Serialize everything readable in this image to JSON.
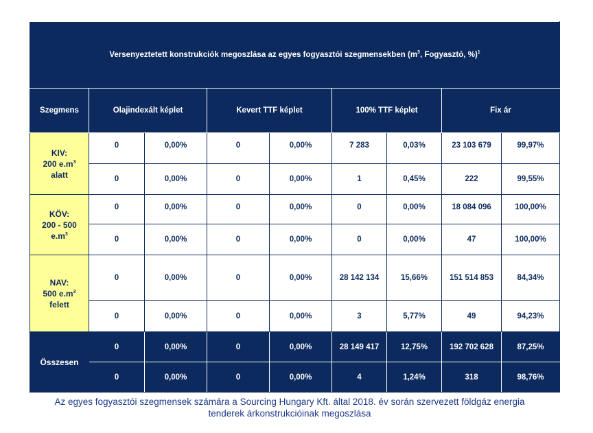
{
  "table": {
    "title": "Versenyeztetett konstrukciók megoszlása az egyes fogyasztói szegmensekben (m³, Fogyasztó, %)¹",
    "headers": [
      "Szegmens",
      "Olajindexált képlet",
      "Kevert TTF képlet",
      "100% TTF képlet",
      "Fix ár"
    ],
    "segments": [
      {
        "label_lines": [
          "KIV:",
          "200 e.m³",
          "alatt"
        ],
        "rows": [
          [
            "0",
            "0,00%",
            "0",
            "0,00%",
            "7 283",
            "0,03%",
            "23 103 679",
            "99,97%"
          ],
          [
            "0",
            "0,00%",
            "0",
            "0,00%",
            "1",
            "0,45%",
            "222",
            "99,55%"
          ]
        ]
      },
      {
        "label_lines": [
          "KÖV:",
          "200 - 500",
          "e.m³"
        ],
        "rows": [
          [
            "0",
            "0,00%",
            "0",
            "0,00%",
            "0",
            "0,00%",
            "18 084 096",
            "100,00%"
          ],
          [
            "0",
            "0,00%",
            "0",
            "0,00%",
            "0",
            "0,00%",
            "47",
            "100,00%"
          ]
        ]
      },
      {
        "label_lines": [
          "NAV:",
          "500 e.m³",
          "felett"
        ],
        "rows": [
          [
            "0",
            "0,00%",
            "0",
            "0,00%",
            "28 142 134",
            "15,66%",
            "151 514 853",
            "84,34%"
          ],
          [
            "0",
            "0,00%",
            "0",
            "0,00%",
            "3",
            "5,77%",
            "49",
            "94,23%"
          ]
        ]
      }
    ],
    "total": {
      "label": "Összesen",
      "rows": [
        [
          "0",
          "0,00%",
          "0",
          "0,00%",
          "28 149 417",
          "12,75%",
          "192 702 628",
          "87,25%"
        ],
        [
          "0",
          "0,00%",
          "0",
          "0,00%",
          "4",
          "1,24%",
          "318",
          "98,76%"
        ]
      ]
    }
  },
  "caption": {
    "line1": "Az egyes fogyasztói szegmensek számára a Sourcing Hungary Kft. által 2018. év során szervezett földgáz energia",
    "line2": "tenderek árkonstrukcióinak megoszlása"
  },
  "colors": {
    "header_bg": "#0d2a5e",
    "segment_bg": "#ffff99",
    "caption_text": "#1f3a8a"
  }
}
